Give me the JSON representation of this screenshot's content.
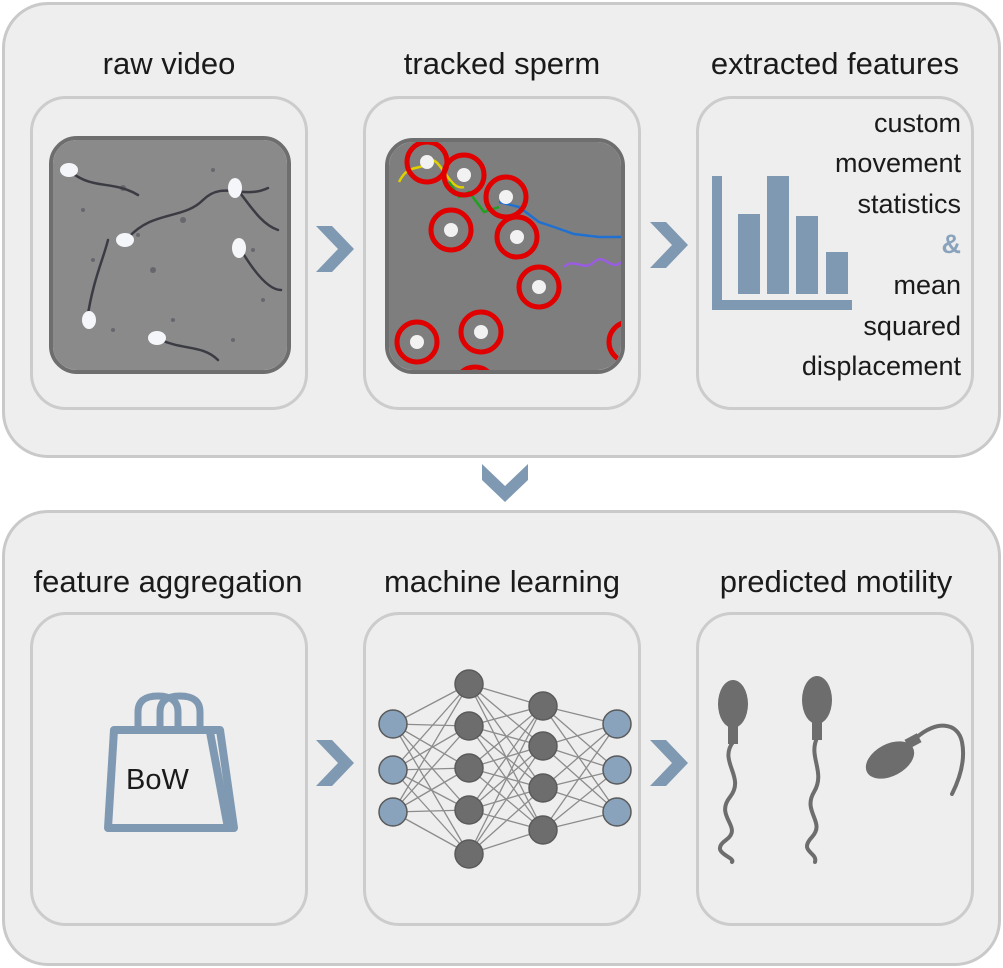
{
  "stages_top": {
    "raw_video": "raw video",
    "tracked_sperm": "tracked sperm",
    "extracted_features": "extracted features"
  },
  "features_text": {
    "line1": "custom",
    "line2": "movement",
    "line3": "statistics",
    "ampersand": "&",
    "line4": "mean",
    "line5": "squared",
    "line6": "displacement"
  },
  "stages_bottom": {
    "feature_aggregation": "feature aggregation",
    "machine_learning": "machine learning",
    "predicted_motility": "predicted motility"
  },
  "bow_label": "BoW",
  "icons": {
    "arrow": "chevron-right-icon",
    "arrow_down": "chevron-down-icon",
    "bar_chart": "bar-chart-icon",
    "shopping_bag": "shopping-bag-icon",
    "neural_network": "neural-network-icon",
    "sperm": "sperm-icon"
  },
  "colors": {
    "accent_blue": "#8099b2",
    "node_blue": "#8aa3bc",
    "node_gray": "#6d6d6d",
    "tracking_red": "#e00000"
  }
}
